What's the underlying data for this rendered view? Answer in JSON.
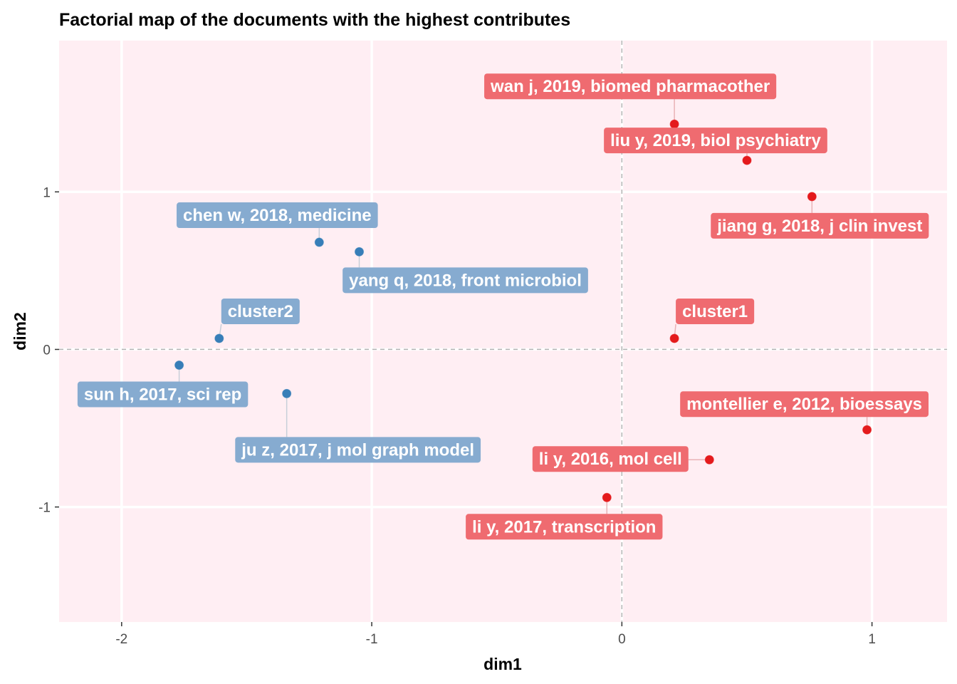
{
  "chart_data": {
    "type": "scatter",
    "title": "Factorial map of the documents with the highest contributes",
    "xlabel": "dim1",
    "ylabel": "dim2",
    "xlim": [
      -2.25,
      1.3
    ],
    "ylim": [
      -1.73,
      1.96
    ],
    "x_ticks": [
      -2,
      -1,
      0,
      1
    ],
    "y_ticks": [
      -1,
      0,
      1
    ],
    "x_tick_labels": [
      "-2",
      "-1",
      "0",
      "1"
    ],
    "y_tick_labels": [
      "-1",
      "0",
      "1"
    ],
    "grid": true,
    "reference_lines": {
      "x": 0,
      "y": 0,
      "style": "dashed"
    },
    "legend": "none",
    "colors": {
      "panel_background": "#ffeef3",
      "cluster1_point": "#e41a1c",
      "cluster1_label": "#ef6b70",
      "cluster2_point": "#377eb8",
      "cluster2_label": "#86abd0",
      "reference_line": "#b3b3b3",
      "connector": "#d9d9d9"
    },
    "points": [
      {
        "label": "wan j, 2019, biomed pharmacother",
        "x": 0.21,
        "y": 1.43,
        "group": "cluster1"
      },
      {
        "label": "liu y, 2019, biol psychiatry",
        "x": 0.5,
        "y": 1.2,
        "group": "cluster1"
      },
      {
        "label": "jiang g, 2018, j clin invest",
        "x": 0.76,
        "y": 0.97,
        "group": "cluster1"
      },
      {
        "label": "cluster1",
        "x": 0.21,
        "y": 0.07,
        "group": "cluster1"
      },
      {
        "label": "montellier e, 2012, bioessays",
        "x": 0.98,
        "y": -0.51,
        "group": "cluster1"
      },
      {
        "label": "li y, 2016, mol cell",
        "x": 0.35,
        "y": -0.7,
        "group": "cluster1"
      },
      {
        "label": "li y, 2017, transcription",
        "x": -0.06,
        "y": -0.94,
        "group": "cluster1"
      },
      {
        "label": "chen w, 2018, medicine",
        "x": -1.21,
        "y": 0.68,
        "group": "cluster2"
      },
      {
        "label": "yang q, 2018, front microbiol",
        "x": -1.05,
        "y": 0.62,
        "group": "cluster2"
      },
      {
        "label": "cluster2",
        "x": -1.61,
        "y": 0.07,
        "group": "cluster2"
      },
      {
        "label": "sun h, 2017, sci rep",
        "x": -1.77,
        "y": -0.1,
        "group": "cluster2"
      },
      {
        "label": "ju z, 2017, j mol graph model",
        "x": -1.34,
        "y": -0.28,
        "group": "cluster2"
      }
    ]
  }
}
